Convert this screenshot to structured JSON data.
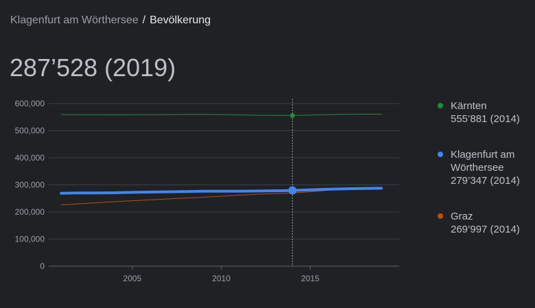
{
  "breadcrumb": {
    "parent": "Klagenfurt am Wörthersee",
    "separator": "/",
    "current": "Bevölkerung"
  },
  "headline": {
    "value": "287’528",
    "year": "(2019)"
  },
  "legend": [
    {
      "name": "Kärnten",
      "value": "555’881 (2014)",
      "color": "#1e8e3e"
    },
    {
      "name": "Klagenfurt am Wörthersee",
      "value": "279’347 (2014)",
      "color": "#4285f4"
    },
    {
      "name": "Graz",
      "value": "269’997 (2014)",
      "color": "#b45309"
    }
  ],
  "chart_data": {
    "type": "line",
    "x": [
      2001,
      2002,
      2003,
      2004,
      2005,
      2006,
      2007,
      2008,
      2009,
      2010,
      2011,
      2012,
      2013,
      2014,
      2015,
      2016,
      2017,
      2018,
      2019
    ],
    "xticks": [
      2005,
      2010,
      2015
    ],
    "xtick_labels": [
      "2005",
      "2010",
      "2015"
    ],
    "xlim": [
      2000.3,
      2020
    ],
    "ylim": [
      0,
      600000
    ],
    "yticks": [
      0,
      100000,
      200000,
      300000,
      400000,
      500000,
      600000
    ],
    "ytick_labels": [
      "0",
      "100,000",
      "200,000",
      "300,000",
      "400,000",
      "500,000",
      "600,000"
    ],
    "grid": true,
    "legend_position": "right",
    "highlight_x": 2014,
    "series": [
      {
        "name": "Kärnten",
        "color": "#1e8e3e",
        "values": [
          559500,
          559100,
          558800,
          558500,
          559000,
          559300,
          559500,
          559700,
          559800,
          559400,
          558200,
          557000,
          556300,
          555881,
          557500,
          559300,
          560600,
          560900,
          561000
        ]
      },
      {
        "name": "Klagenfurt am Wörthersee",
        "color": "#4285f4",
        "values": [
          269000,
          270000,
          270500,
          271000,
          272500,
          273500,
          274500,
          275500,
          276500,
          276500,
          276700,
          277100,
          278200,
          279347,
          281500,
          283800,
          285500,
          286700,
          287528
        ]
      },
      {
        "name": "Graz",
        "color": "#b45309",
        "values": [
          226000,
          230000,
          234000,
          238000,
          241500,
          244500,
          248000,
          251500,
          254500,
          258000,
          262000,
          265500,
          267500,
          269997,
          274500,
          280000,
          284500,
          286000,
          288000
        ]
      }
    ]
  }
}
